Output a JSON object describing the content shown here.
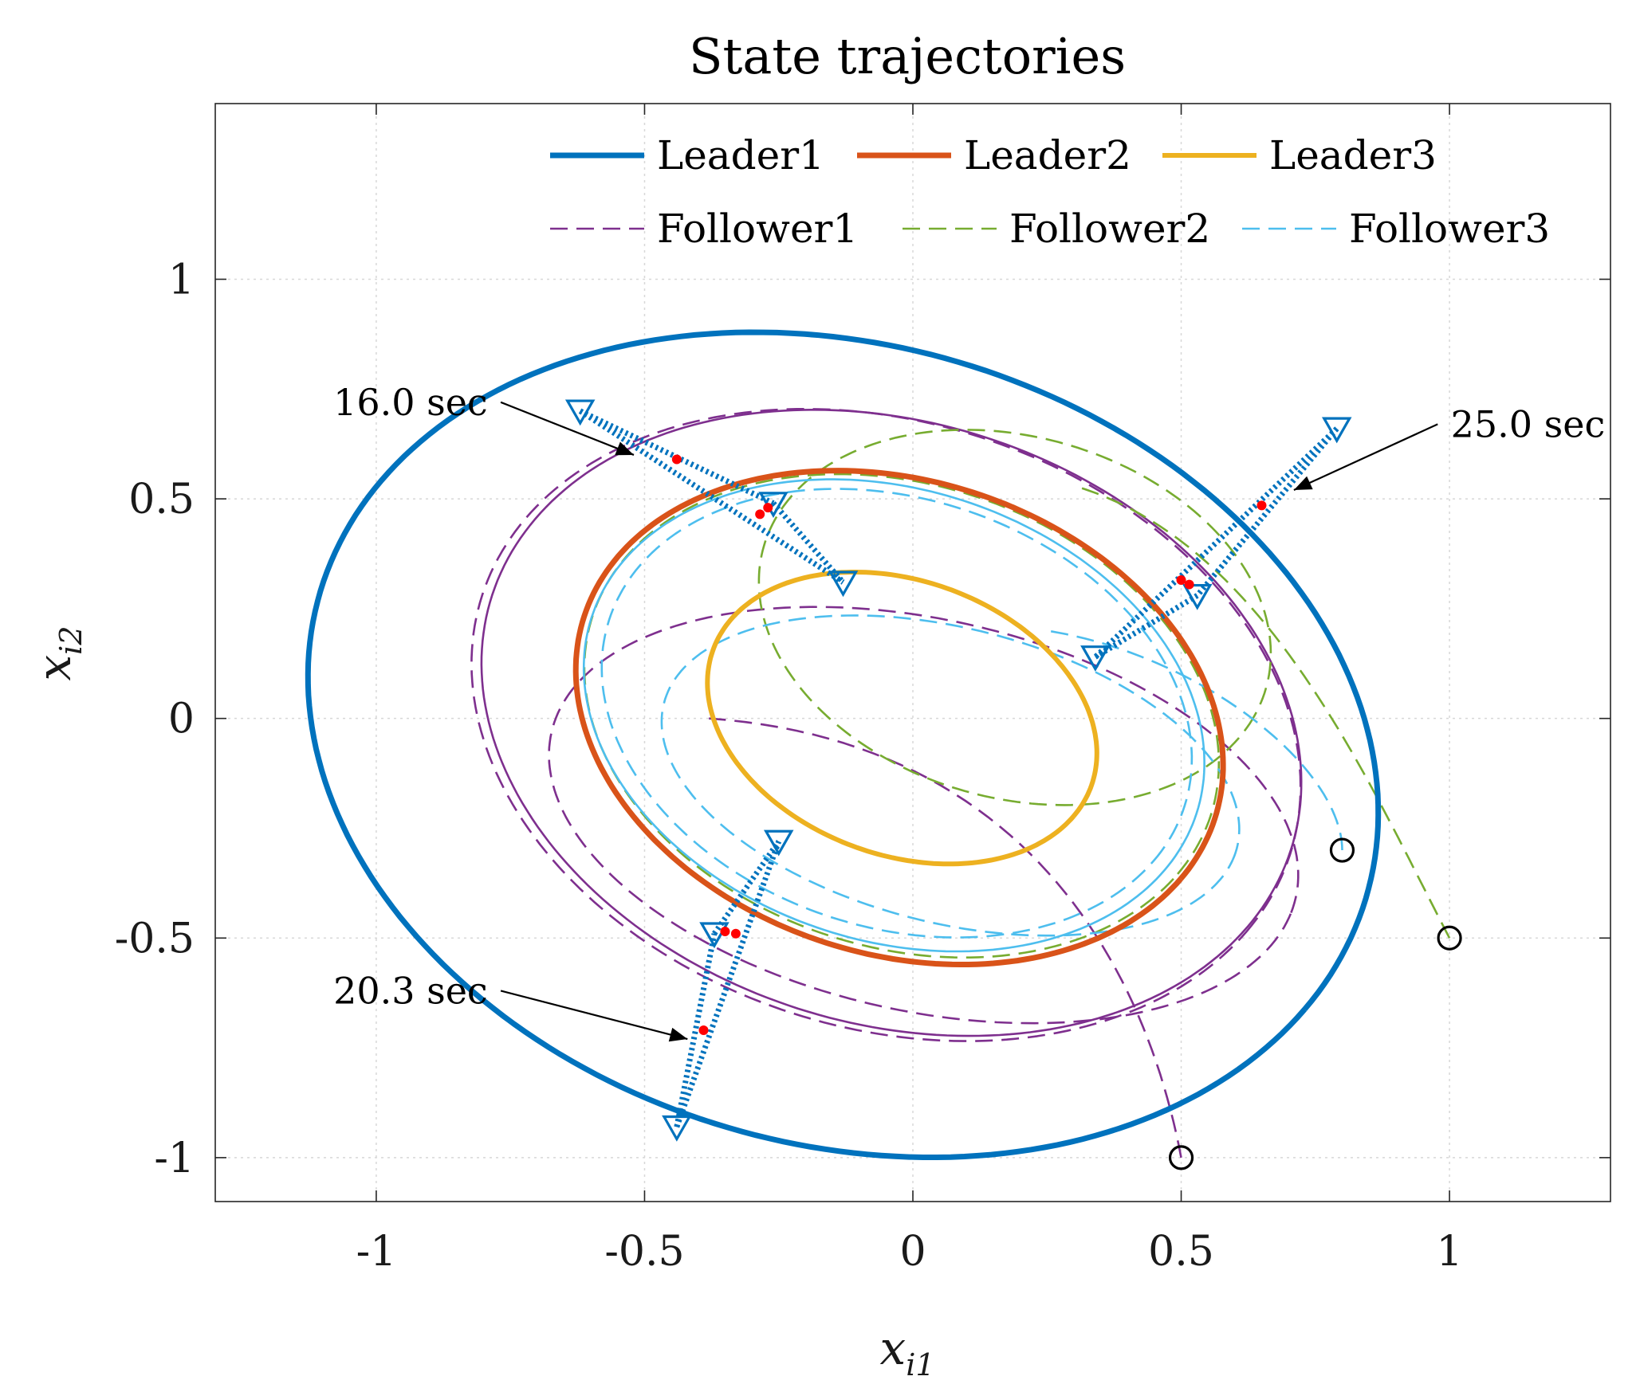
{
  "chart_data": {
    "type": "line",
    "title": "State trajectories",
    "xlabel": {
      "main": "x",
      "sub": "i1"
    },
    "ylabel": {
      "main": "x",
      "sub": "i2"
    },
    "xlim": [
      -1.3,
      1.3
    ],
    "ylim": [
      -1.1,
      1.4
    ],
    "xticks": [
      -1,
      -0.5,
      0,
      0.5,
      1
    ],
    "yticks": [
      -1,
      -0.5,
      0,
      0.5,
      1
    ],
    "xtick_labels": [
      "-1",
      "-0.5",
      "0",
      "0.5",
      "1"
    ],
    "ytick_labels": [
      "-1",
      "-0.5",
      "0",
      "0.5",
      "1"
    ],
    "grid": true,
    "legend_position": "top",
    "colors": {
      "leader1": "#0072BD",
      "leader2": "#D95319",
      "leader3": "#EDB120",
      "follower1": "#7E2F8E",
      "follower2": "#77AC30",
      "follower3": "#4DBEEE",
      "formation": "#0072BD",
      "marker_point": "#FF0000",
      "initial": "#000000"
    },
    "series": [
      {
        "name": "Leader1",
        "style": "solid",
        "ellipse": {
          "cx": -0.13,
          "cy": -0.06,
          "a": 1.05,
          "b": 0.88,
          "theta_deg": -35
        }
      },
      {
        "name": "Leader2",
        "style": "solid",
        "ellipse": {
          "cx": -0.025,
          "cy": 0.002,
          "a": 0.64,
          "b": 0.52,
          "theta_deg": -35
        }
      },
      {
        "name": "Leader3",
        "style": "solid",
        "ellipse": {
          "cx": -0.02,
          "cy": 0.001,
          "a": 0.39,
          "b": 0.3,
          "theta_deg": -35
        }
      },
      {
        "name": "Follower1",
        "style": "dashed"
      },
      {
        "name": "Follower2",
        "style": "dashed"
      },
      {
        "name": "Follower3",
        "style": "dashed"
      }
    ],
    "initial_points": [
      {
        "agent": "Follower1",
        "x": 0.5,
        "y": -1.0
      },
      {
        "agent": "Follower2",
        "x": 1.0,
        "y": -0.5
      },
      {
        "agent": "Follower3",
        "x": 0.8,
        "y": -0.3
      }
    ],
    "snapshots": [
      {
        "label": "16.0 sec",
        "triangles": [
          {
            "x": -0.62,
            "y": 0.7
          },
          {
            "x": -0.26,
            "y": 0.49
          },
          {
            "x": -0.13,
            "y": 0.31
          }
        ],
        "red_points": [
          {
            "x": -0.44,
            "y": 0.59
          },
          {
            "x": -0.27,
            "y": 0.48
          },
          {
            "x": -0.285,
            "y": 0.465
          }
        ]
      },
      {
        "label": "20.3 sec",
        "triangles": [
          {
            "x": -0.44,
            "y": -0.93
          },
          {
            "x": -0.37,
            "y": -0.49
          },
          {
            "x": -0.25,
            "y": -0.28
          }
        ],
        "red_points": [
          {
            "x": -0.39,
            "y": -0.71
          },
          {
            "x": -0.35,
            "y": -0.485
          },
          {
            "x": -0.33,
            "y": -0.49
          }
        ]
      },
      {
        "label": "25.0 sec",
        "triangles": [
          {
            "x": 0.79,
            "y": 0.66
          },
          {
            "x": 0.53,
            "y": 0.28
          },
          {
            "x": 0.34,
            "y": 0.14
          }
        ],
        "red_points": [
          {
            "x": 0.65,
            "y": 0.485
          },
          {
            "x": 0.5,
            "y": 0.315
          },
          {
            "x": 0.515,
            "y": 0.305
          }
        ]
      }
    ]
  }
}
